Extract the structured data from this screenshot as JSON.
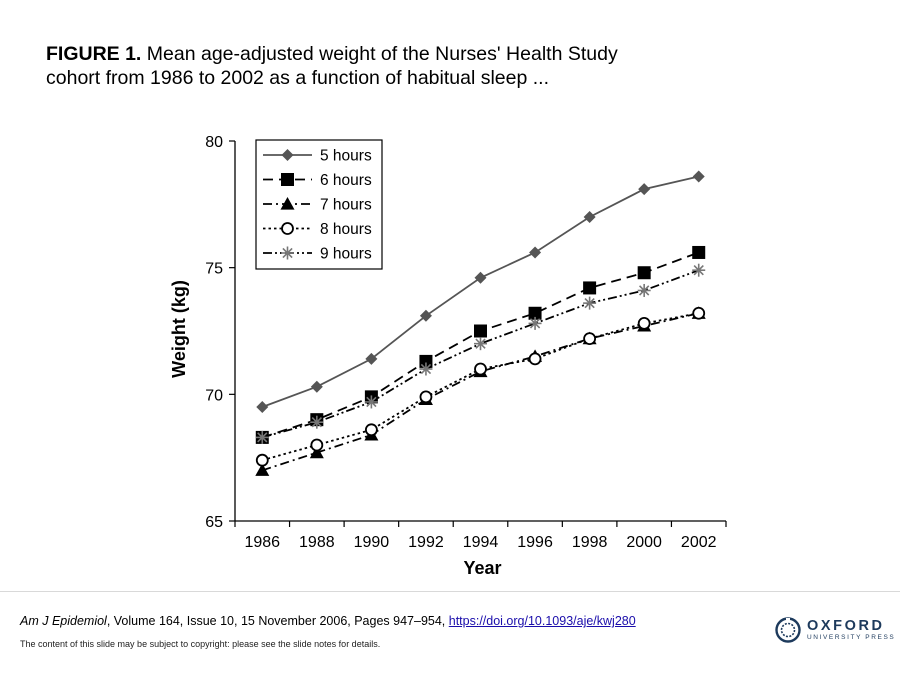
{
  "figure": {
    "label": "FIGURE 1.",
    "caption_line1": " Mean age-adjusted weight of the Nurses' Health Study",
    "caption_line2": "cohort from 1986 to 2002 as a function of habitual sleep ..."
  },
  "chart_data": {
    "type": "line",
    "title": "",
    "xlabel": "Year",
    "ylabel": "Weight (kg)",
    "x": [
      1986,
      1988,
      1990,
      1992,
      1994,
      1996,
      1998,
      2000,
      2002
    ],
    "x_tick_labels": [
      "1986",
      "1988",
      "1990",
      "1992",
      "1994",
      "1996",
      "1998",
      "2000",
      "2002"
    ],
    "xlim": [
      1985,
      2003
    ],
    "ylim": [
      65,
      80
    ],
    "y_ticks": [
      65,
      70,
      75,
      80
    ],
    "y_tick_labels": [
      "65",
      "70",
      "75",
      "80"
    ],
    "grid": false,
    "legend_position": "top-left",
    "series": [
      {
        "name": "5 hours",
        "marker": "diamond",
        "dash": "solid",
        "color": "#555555",
        "values": [
          69.5,
          70.3,
          71.4,
          73.1,
          74.6,
          75.6,
          77.0,
          78.1,
          78.6
        ]
      },
      {
        "name": "6 hours",
        "marker": "square",
        "dash": "long-dash",
        "color": "#000000",
        "values": [
          68.3,
          69.0,
          69.9,
          71.3,
          72.5,
          73.2,
          74.2,
          74.8,
          75.6
        ]
      },
      {
        "name": "7 hours",
        "marker": "triangle",
        "dash": "dash-dot",
        "color": "#000000",
        "values": [
          67.0,
          67.7,
          68.4,
          69.8,
          70.9,
          71.5,
          72.2,
          72.7,
          73.2
        ]
      },
      {
        "name": "8 hours",
        "marker": "circle-open",
        "dash": "dotted",
        "color": "#000000",
        "values": [
          67.4,
          68.0,
          68.6,
          69.9,
          71.0,
          71.4,
          72.2,
          72.8,
          73.2
        ]
      },
      {
        "name": "9 hours",
        "marker": "asterisk",
        "dash": "dash-dot-dot",
        "color": "#777777",
        "values": [
          68.3,
          68.9,
          69.7,
          71.0,
          72.0,
          72.8,
          73.6,
          74.1,
          74.9
        ]
      }
    ]
  },
  "citation": {
    "journal": "Am J Epidemiol",
    "details": ", Volume 164, Issue 10, 15 November 2006, Pages 947–954, ",
    "doi_text": "https://doi.org/10.1093/aje/kwj280"
  },
  "copyright": "The content of this slide may be subject to copyright: please see the slide notes for details.",
  "publisher": {
    "name": "OXFORD",
    "subtitle": "UNIVERSITY PRESS",
    "logo_icon": "oxford-roundel-icon",
    "color": "#1d3a5c"
  }
}
